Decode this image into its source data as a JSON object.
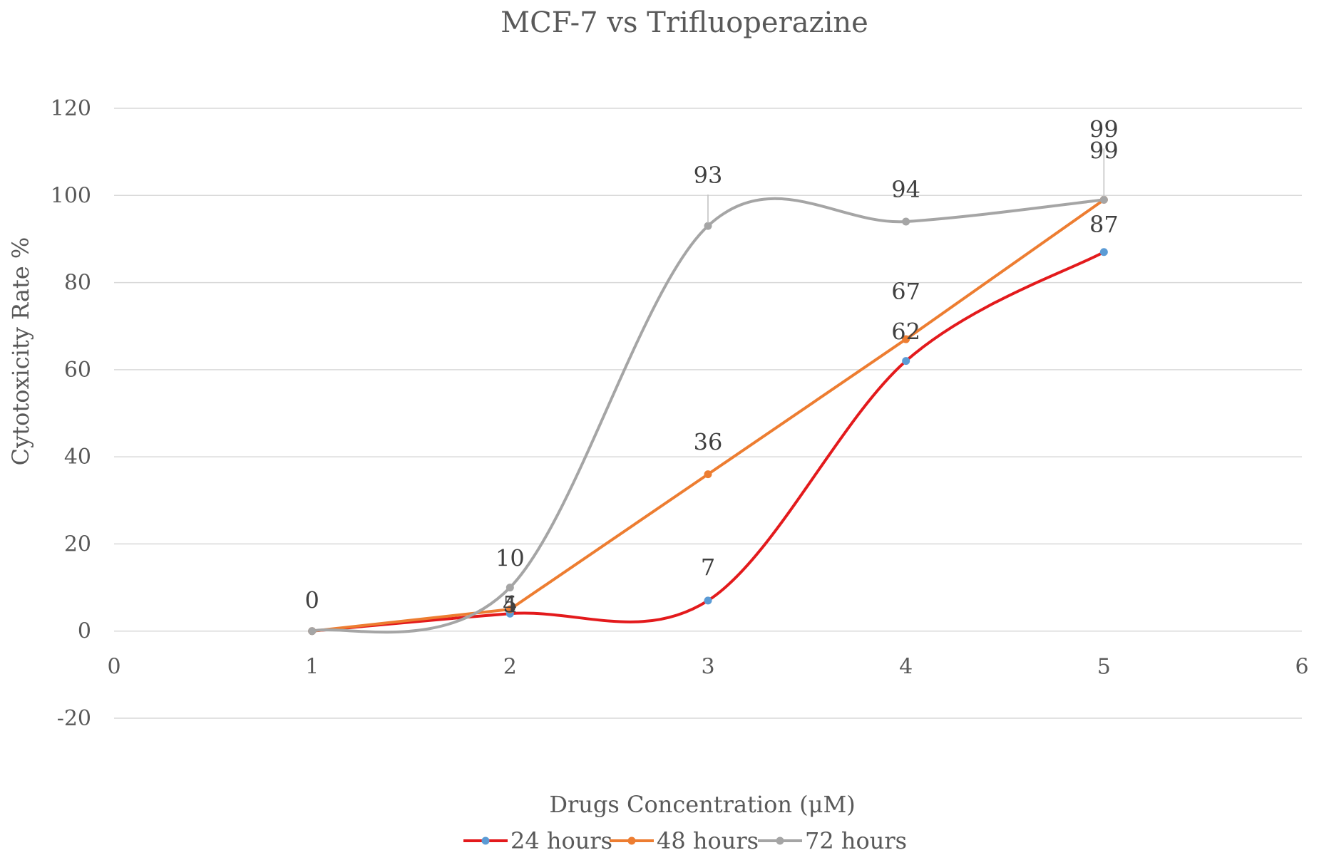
{
  "chart_data": {
    "type": "line",
    "title": "MCF-7 vs Trifluoperazine",
    "xlabel": "Drugs Concentration (μM)",
    "ylabel": "Cytotoxicity  Rate %",
    "xlim": [
      0,
      6
    ],
    "ylim": [
      -20,
      120
    ],
    "xticks": [
      0,
      1,
      2,
      3,
      4,
      5,
      6
    ],
    "yticks": [
      -20,
      0,
      20,
      40,
      60,
      80,
      100,
      120
    ],
    "grid": true,
    "legend_position": "bottom",
    "series": [
      {
        "name": "24 hours",
        "line_color": "#e31a1c",
        "marker_color": "#5b9bd5",
        "x": [
          1,
          2,
          3,
          4,
          5
        ],
        "values": [
          0,
          4,
          7,
          62,
          87
        ],
        "labels": [
          "",
          "4",
          "7",
          "62",
          "87"
        ]
      },
      {
        "name": "48 hours",
        "line_color": "#ed7d31",
        "marker_color": "#ed7d31",
        "x": [
          1,
          2,
          3,
          4,
          5
        ],
        "values": [
          0,
          5,
          36,
          67,
          99
        ],
        "labels": [
          "",
          "5",
          "36",
          "67",
          "99"
        ]
      },
      {
        "name": "72 hours",
        "line_color": "#a5a5a5",
        "marker_color": "#a5a5a5",
        "x": [
          1,
          2,
          3,
          4,
          5
        ],
        "values": [
          0,
          10,
          93,
          94,
          99
        ],
        "labels": [
          "0",
          "10",
          "93",
          "94",
          "99"
        ]
      }
    ]
  }
}
